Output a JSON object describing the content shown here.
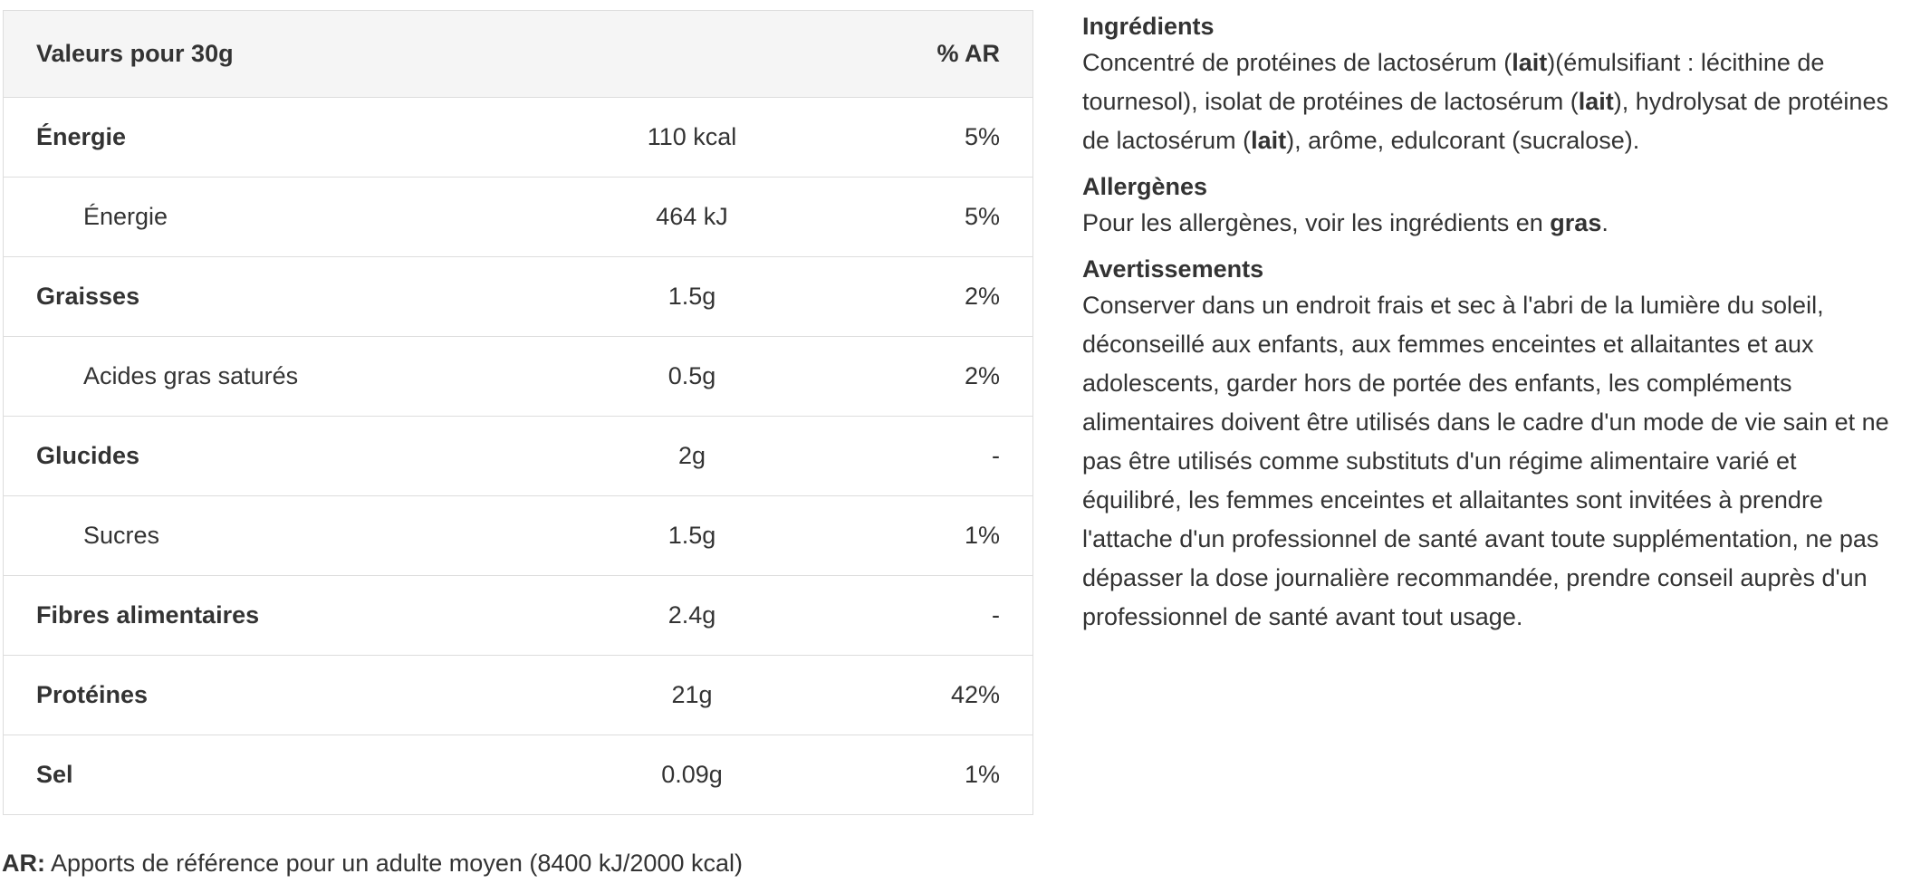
{
  "table": {
    "header": [
      "Valeurs pour 30g",
      "% AR"
    ],
    "rows": [
      [
        "Énergie",
        "110 kcal",
        "5%"
      ],
      [
        "Énergie",
        "464 kJ",
        "5%"
      ],
      [
        "Graisses",
        "1.5g",
        "2%"
      ],
      [
        "Acides gras saturés",
        "0.5g",
        "2%"
      ],
      [
        "Glucides",
        "2g",
        "-"
      ],
      [
        "Sucres",
        "1.5g",
        "1%"
      ],
      [
        "Fibres alimentaires",
        "2.4g",
        "-"
      ],
      [
        "Protéines",
        "21g",
        "42%"
      ],
      [
        "Sel",
        "0.09g",
        "1%"
      ]
    ]
  },
  "footnote": {
    "label": "AR:",
    "text": "Apports de référence pour un adulte moyen (8400 kJ/2000 kcal)"
  },
  "sections": [
    {
      "title": "Ingrédients",
      "body": [
        "Concentré de protéines de lactosérum (",
        "lait",
        ")(émulsifiant : lécithine de tournesol), isolat de protéines de lactosérum (",
        "lait",
        "), hydrolysat de protéines de lactosérum (",
        "lait",
        "), arôme, edulcorant (sucralose)."
      ]
    },
    {
      "title": "Allergènes",
      "body": [
        "Pour les allergènes, voir les ingrédients en ",
        "gras",
        "."
      ]
    },
    {
      "title": "Avertissements",
      "body": [
        "Conserver dans un endroit frais et sec à l'abri de la lumière du soleil, déconseillé aux enfants, aux femmes enceintes et allaitantes et aux adolescents, garder hors de portée des enfants, les compléments alimentaires doivent être utilisés dans le cadre d'un mode de vie sain et ne pas être utilisés comme substituts d'un régime alimentaire varié et équilibré, les femmes enceintes et allaitantes sont invitées à prendre l'attache d'un professionnel de santé avant toute supplémentation, ne pas dépasser la dose journalière recommandée, prendre conseil auprès d'un professionnel de santé avant tout usage."
      ]
    }
  ]
}
